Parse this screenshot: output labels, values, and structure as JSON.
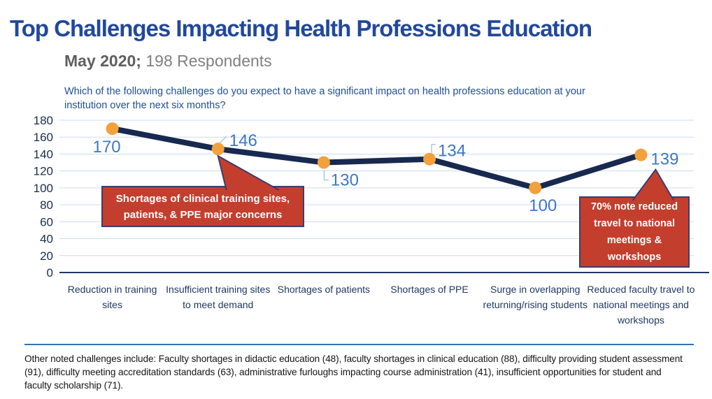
{
  "title": "Top Challenges Impacting Health Professions Education",
  "subtitle": {
    "period": "May 2020;",
    "respondents": " 198 Respondents"
  },
  "question": "Which of the following challenges do you expect to have a significant impact on health professions education at your institution over the next six months?",
  "chart_data": {
    "type": "line",
    "categories": [
      "Reduction in training sites",
      "Insufficient training sites to meet demand",
      "Shortages of patients",
      "Shortages of PPE",
      "Surge in overlapping returning/rising students",
      "Reduced faculty travel to national meetings and workshops"
    ],
    "values": [
      170,
      146,
      130,
      134,
      100,
      139
    ],
    "title": "",
    "xlabel": "",
    "ylabel": "",
    "ylim": [
      0,
      180
    ],
    "ytick_step": 20,
    "grid": true,
    "legend": "none",
    "line_color": "#17294E",
    "marker_color": "#F2A13C",
    "label_color": "#3D77C8",
    "gridline_color": "#C9DCF1",
    "axis_color": "#1F3864",
    "leader_color": "#A6B8D4"
  },
  "annotations": [
    {
      "text": "Shortages of clinical training sites, patients, & PPE major concerns",
      "target_value": 146
    },
    {
      "text": "70% note reduced travel to national meetings & workshops",
      "target_value": 139
    }
  ],
  "annotation_colors": {
    "fill": "#C43E2E",
    "border": "#3C3C6B",
    "text": "#FFFFFF"
  },
  "footnote": "Other noted challenges include: Faculty shortages in didactic education (48), faculty shortages in clinical education (88), difficulty providing student assessment (91), difficulty meeting accreditation standards (63), administrative furloughs impacting course administration (41), insufficient opportunities for student and faculty scholarship (71)."
}
